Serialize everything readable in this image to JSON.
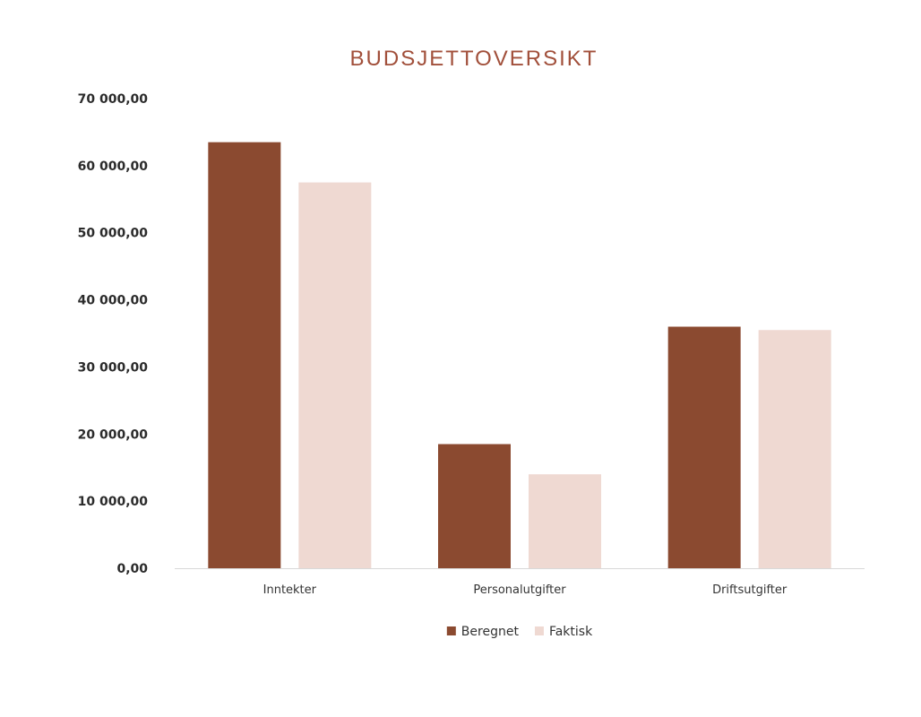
{
  "chart_data": {
    "type": "bar",
    "title": "BUDSJETTOVERSIKT",
    "categories": [
      "Inntekter",
      "Personalutgifter",
      "Driftsutgifter"
    ],
    "series": [
      {
        "name": "Beregnet",
        "color": "#8b4a30",
        "values": [
          63500,
          18500,
          36000
        ]
      },
      {
        "name": "Faktisk",
        "color": "#efd9d2",
        "values": [
          57500,
          14000,
          35500
        ]
      }
    ],
    "ylim": [
      0,
      70000
    ],
    "yticks": [
      "0,00",
      "10 000,00",
      "20 000,00",
      "30 000,00",
      "40 000,00",
      "50 000,00",
      "60 000,00",
      "70 000,00"
    ],
    "grid": false,
    "legend_position": "bottom",
    "xlabel": "",
    "ylabel": ""
  },
  "colors": {
    "title": "#a14f3a",
    "axis_line": "#d9d9d9"
  }
}
